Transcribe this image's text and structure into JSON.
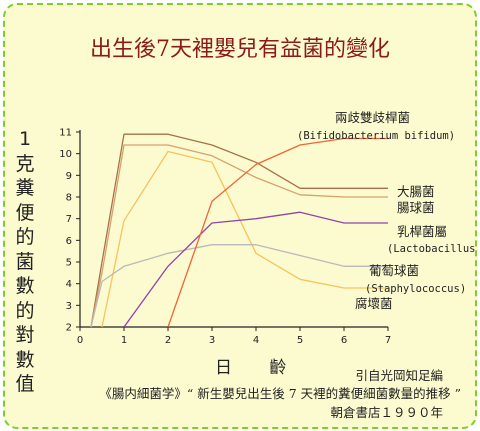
{
  "chart_data": {
    "type": "line",
    "title": "出生後7天裡嬰兒有益菌的變化",
    "ylabel": "1克糞便的菌數的對數值",
    "xlabel": "日 齡",
    "xlim": [
      0,
      7
    ],
    "ylim": [
      2,
      11
    ],
    "x_ticks": [
      "0",
      "1",
      "2",
      "3",
      "4",
      "5",
      "6",
      "7"
    ],
    "y_ticks": [
      "2",
      "3",
      "4",
      "5",
      "6",
      "7",
      "8",
      "9",
      "10",
      "11"
    ],
    "grid": false,
    "series": [
      {
        "name": "大腸菌",
        "color": "#a8704a",
        "x": [
          0.25,
          0.5,
          1,
          2,
          3,
          4,
          5,
          6,
          7
        ],
        "y": [
          2,
          5,
          10.9,
          10.9,
          10.4,
          9.6,
          8.4,
          8.4,
          8.4
        ]
      },
      {
        "name": "腸球菌",
        "color": "#d6a070",
        "x": [
          0.25,
          0.5,
          1,
          2,
          3,
          4,
          5,
          6,
          7
        ],
        "y": [
          2,
          4.5,
          10.4,
          10.4,
          9.9,
          8.9,
          8.1,
          8.0,
          8.0
        ]
      },
      {
        "name": "腐壞菌",
        "color": "#f7c35a",
        "x": [
          0.5,
          1,
          2,
          3,
          4,
          5,
          6,
          7
        ],
        "y": [
          2,
          6.9,
          10.1,
          9.6,
          5.4,
          4.2,
          3.8,
          3.8
        ]
      },
      {
        "name": "葡萄球菌",
        "sublabel": "(Staphylococcus)",
        "color": "#b9b9b9",
        "x": [
          0.25,
          0.5,
          1,
          2,
          3,
          4,
          5,
          6,
          7
        ],
        "y": [
          2,
          4.1,
          4.8,
          5.4,
          5.8,
          5.8,
          5.3,
          4.8,
          4.8
        ]
      },
      {
        "name": "乳桿菌屬",
        "sublabel": "(Lactobacillus)",
        "color": "#9045a6",
        "x": [
          1,
          2,
          3,
          4,
          5,
          6,
          7
        ],
        "y": [
          2,
          4.8,
          6.8,
          7.0,
          7.3,
          6.8,
          6.8
        ]
      },
      {
        "name": "兩歧雙歧桿菌",
        "sublabel": "(Bifidobacterium bifidum)",
        "color": "#f0633a",
        "x": [
          2,
          3,
          4,
          5,
          6,
          7
        ],
        "y": [
          2,
          7.8,
          9.5,
          10.4,
          10.7,
          10.7
        ]
      }
    ]
  },
  "citation": {
    "line1": "引自光岡知足編",
    "line2": "《腸内細菌学》“ 新生嬰兒出生後 7 天裡的糞便細菌數量的推移 ”",
    "line3": "朝倉書店１９９０年"
  }
}
